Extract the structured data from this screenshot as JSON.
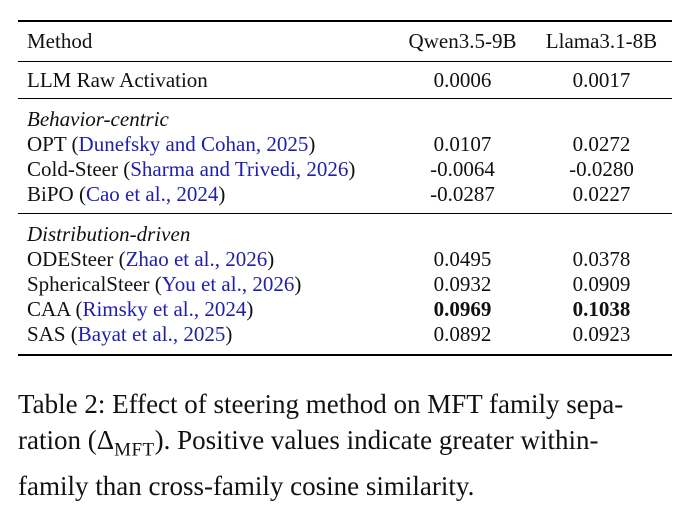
{
  "table": {
    "headers": {
      "method": "Method",
      "col1": "Qwen3.5-9B",
      "col2": "Llama3.1-8B"
    },
    "raw_row": {
      "method": "LLM Raw Activation",
      "v1": "0.0006",
      "v2": "0.0017"
    },
    "behavior_section": {
      "title": "Behavior-centric",
      "rows": [
        {
          "name": "OPT",
          "open": " (",
          "cite": "Dunefsky and Cohan, 2025",
          "close": ")",
          "v1": "0.0107",
          "v2": "0.0272"
        },
        {
          "name": "Cold-Steer",
          "open": " (",
          "cite": "Sharma and Trivedi, 2026",
          "close": ")",
          "v1": "-0.0064",
          "v2": "-0.0280"
        },
        {
          "name": "BiPO",
          "open": " (",
          "cite": "Cao et al., 2024",
          "close": ")",
          "v1": "-0.0287",
          "v2": "0.0227"
        }
      ]
    },
    "distribution_section": {
      "title": "Distribution-driven",
      "rows": [
        {
          "name": "ODESteer",
          "open": " (",
          "cite": "Zhao et al., 2026",
          "close": ")",
          "v1": "0.0495",
          "v2": "0.0378"
        },
        {
          "name": "SphericalSteer",
          "open": " (",
          "cite": "You et al., 2026",
          "close": ")",
          "v1": "0.0932",
          "v2": "0.0909"
        },
        {
          "name": "CAA",
          "open": " (",
          "cite": "Rimsky et al., 2024",
          "close": ")",
          "v1": "0.0969",
          "v2": "0.1038"
        },
        {
          "name": "SAS",
          "open": " (",
          "cite": "Bayat et al., 2025",
          "close": ")",
          "v1": "0.0892",
          "v2": "0.0923"
        }
      ]
    }
  },
  "caption": {
    "line1": "Table 2: Effect of steering method on MFT family sepa-",
    "line2_pre": "ration (Δ",
    "line2_sub": "MFT",
    "line2_post": "). Positive values indicate greater within-",
    "line3": "family than cross-family cosine similarity."
  },
  "colors": {
    "citation": "#1f1fa8",
    "text": "#111111",
    "rules": "#000000"
  }
}
